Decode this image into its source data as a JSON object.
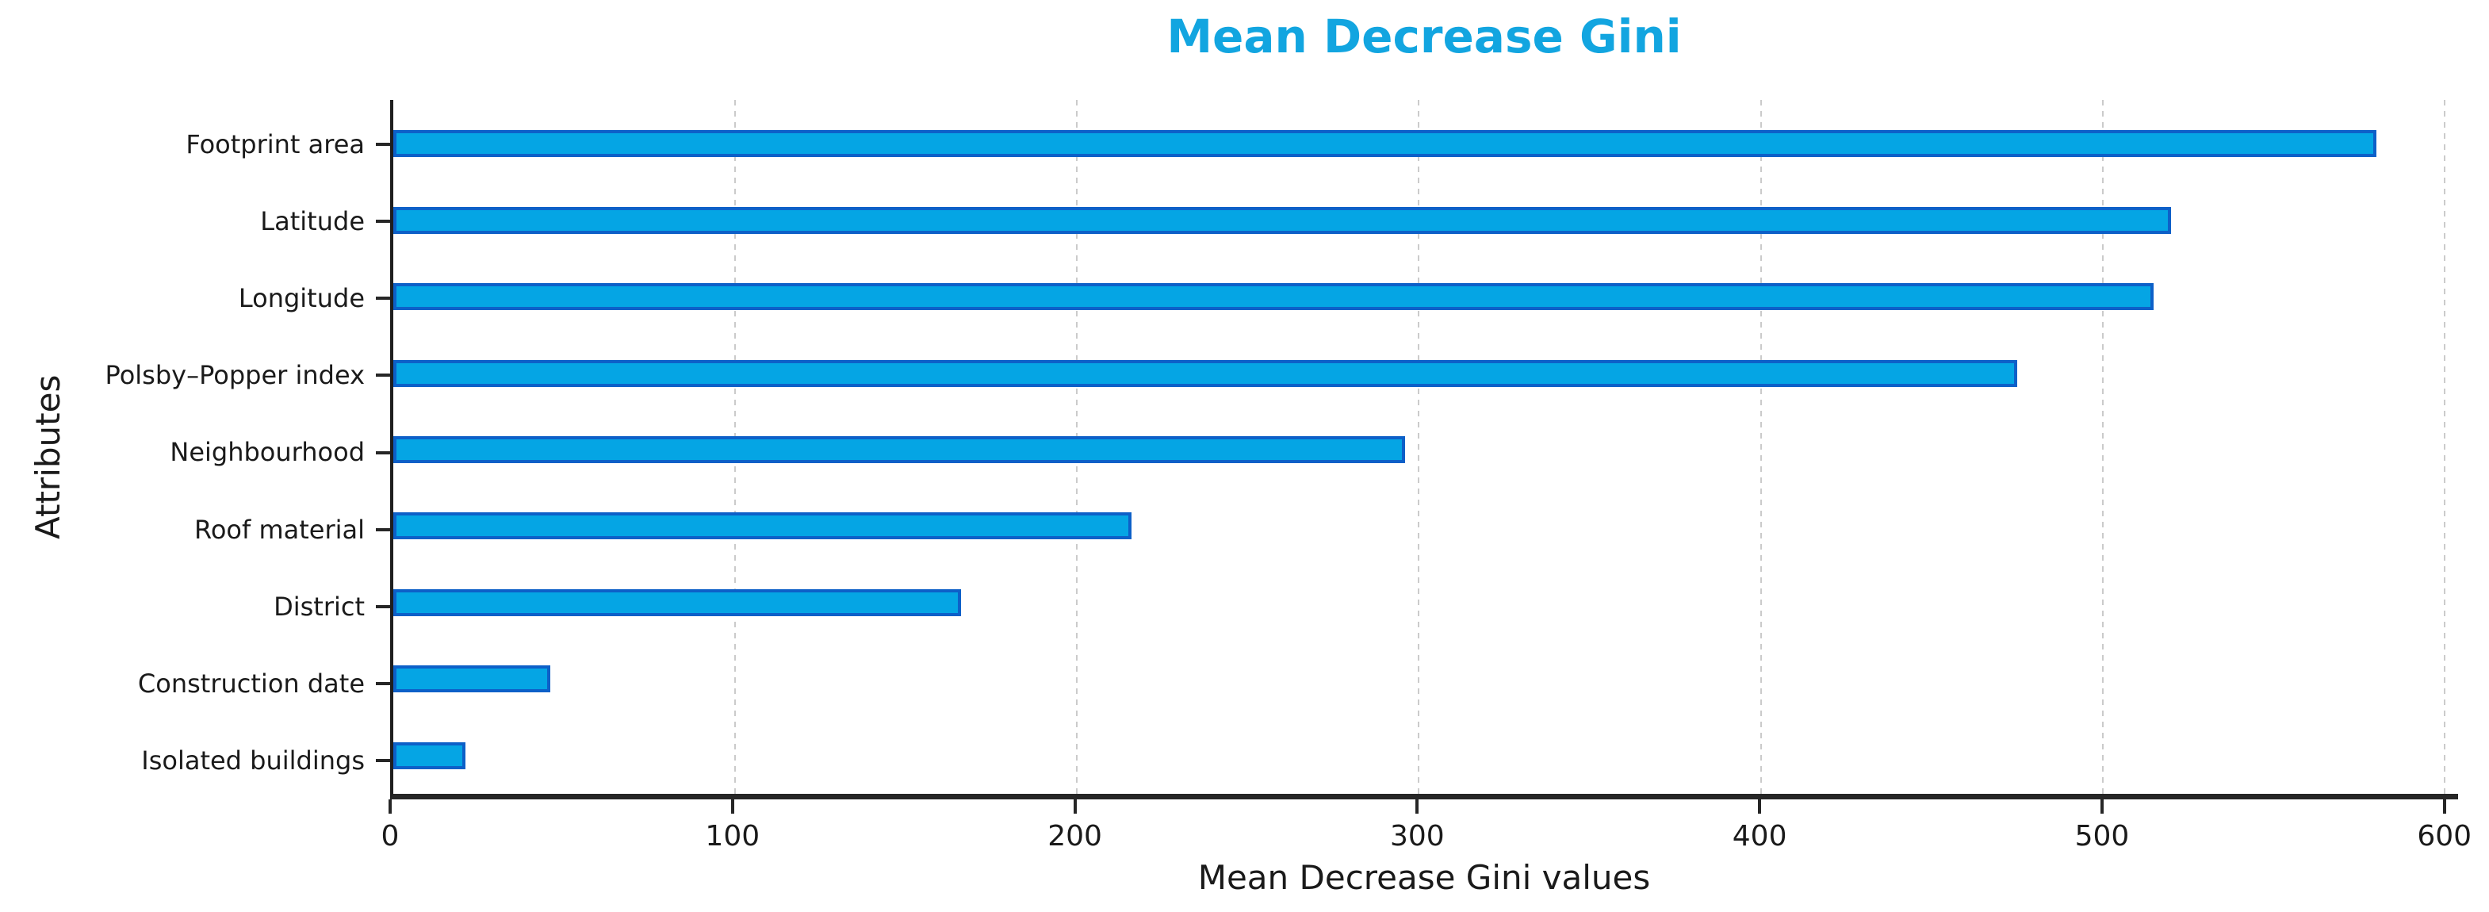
{
  "chart_data": {
    "type": "bar",
    "orientation": "horizontal",
    "title": "Mean Decrease Gini",
    "xlabel": "Mean Decrease Gini values",
    "ylabel": "Attributes",
    "categories": [
      "Footprint area",
      "Latitude",
      "Longitude",
      "Polsby–Popper index",
      "Neighbourhood",
      "Roof material",
      "District",
      "Construction date",
      "Isolated buildings"
    ],
    "values": [
      580,
      520,
      515,
      475,
      296,
      216,
      166,
      46,
      21
    ],
    "xlim": [
      0,
      604
    ],
    "xticks": [
      0,
      100,
      200,
      300,
      400,
      500,
      600
    ],
    "grid": "vertical-dashed",
    "legend": "none",
    "colors": {
      "title": "#12a5e0",
      "bar_fill": "#05a5e4",
      "bar_edge": "#0d60c8",
      "gridline": "#cbcbcb",
      "axis": "#262626",
      "text": "#1a1a1a"
    }
  }
}
